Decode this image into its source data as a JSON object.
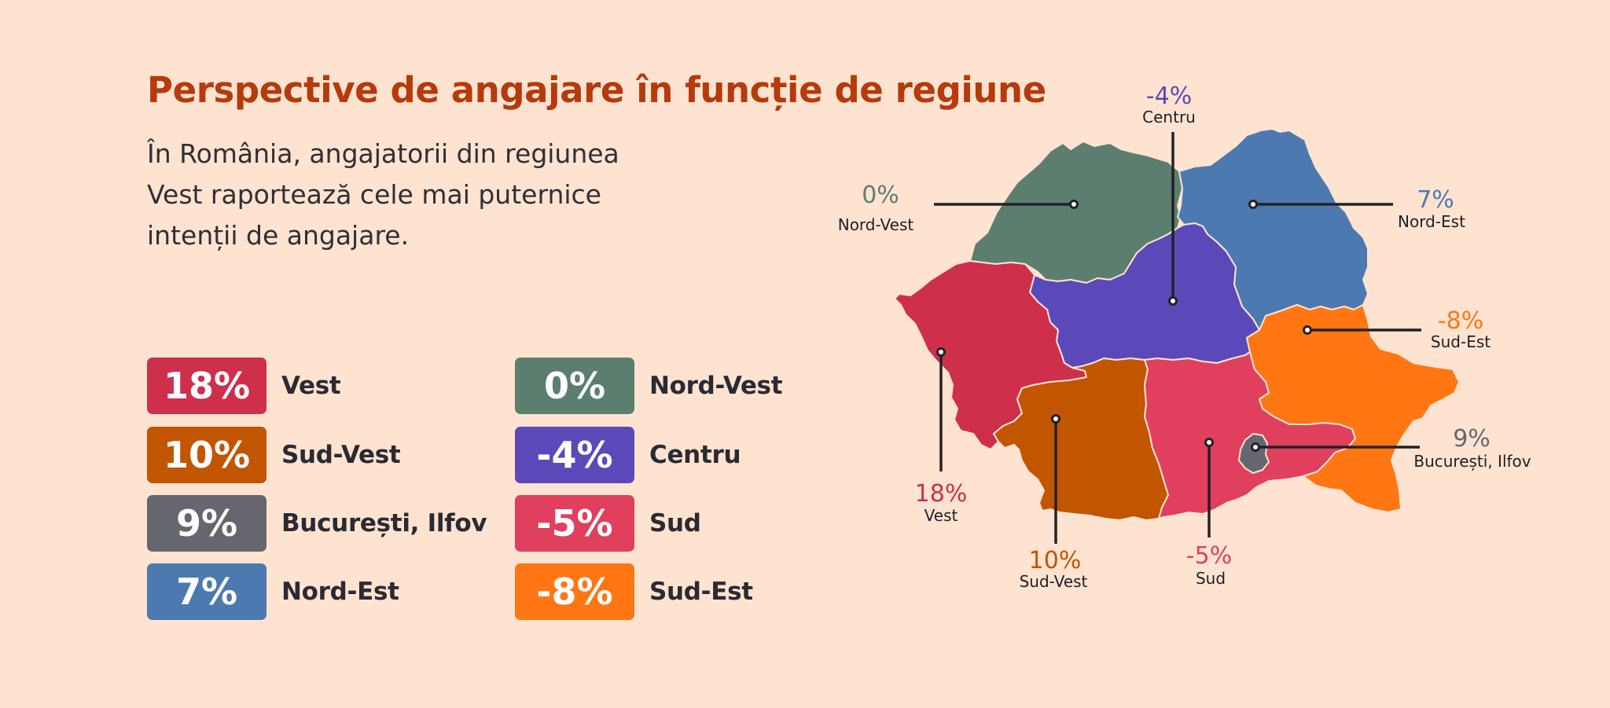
{
  "title": "Perspective de angajare în funcție de regiune",
  "subtitle": "În România, angajatorii din regiunea Vest raportează cele mai puternice intenții de angajare.",
  "regions": [
    {
      "key": "vest",
      "name": "Vest",
      "value_label": "18%",
      "value": 18,
      "color": "#CE2F4B"
    },
    {
      "key": "sudvest",
      "name": "Sud-Vest",
      "value_label": "10%",
      "value": 10,
      "color": "#C25500"
    },
    {
      "key": "buc",
      "name": "București, Ilfov",
      "value_label": "9%",
      "value": 9,
      "color": "#66666E"
    },
    {
      "key": "nordest",
      "name": "Nord-Est",
      "value_label": "7%",
      "value": 7,
      "color": "#4C79AF"
    },
    {
      "key": "nordvest",
      "name": "Nord-Vest",
      "value_label": "0%",
      "value": 0,
      "color": "#5C7E6F"
    },
    {
      "key": "centru",
      "name": "Centru",
      "value_label": "-4%",
      "value": -4,
      "color": "#5B49BA"
    },
    {
      "key": "sud",
      "name": "Sud",
      "value_label": "-5%",
      "value": -5,
      "color": "#E03F5E"
    },
    {
      "key": "sudest",
      "name": "Sud-Est",
      "value_label": "-8%",
      "value": -8,
      "color": "#FF7613"
    }
  ]
}
